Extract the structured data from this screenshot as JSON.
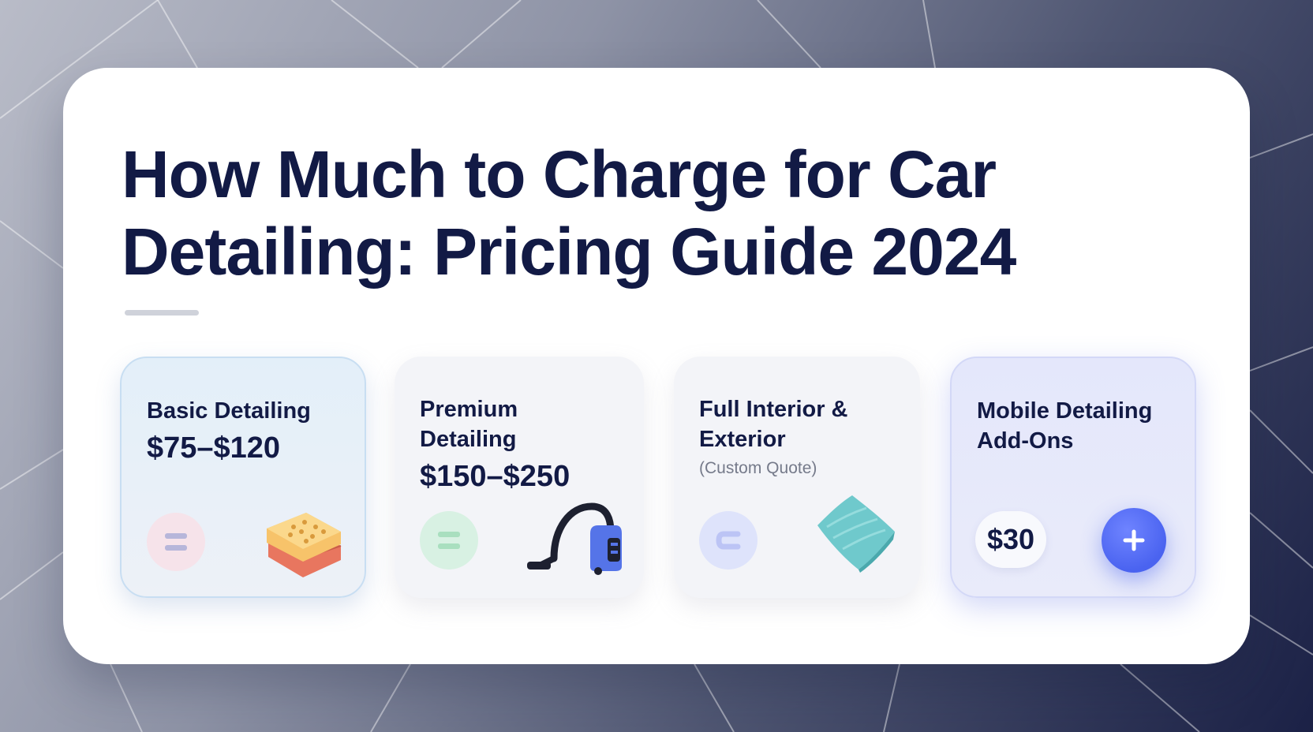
{
  "page": {
    "title": "How Much to Charge for Car Detailing: Pricing Guide 2024"
  },
  "cards": [
    {
      "label": "Basic Detailing",
      "price": "$75–$120",
      "badge_icon": "list-icon",
      "illustration": "sponge-icon"
    },
    {
      "label": "Premium Detailing",
      "price": "$150–$250",
      "badge_icon": "list-icon",
      "illustration": "vacuum-icon"
    },
    {
      "label": "Full Interior & Exterior",
      "note": "(Custom Quote)",
      "badge_icon": "c-shape-icon",
      "illustration": "microfiber-towel-icon"
    },
    {
      "label": "Mobile Detailing Add-Ons",
      "price": "$30",
      "action_icon": "plus-icon"
    }
  ],
  "colors": {
    "heading": "#121a45",
    "accent": "#4a63f0",
    "panel": "#ffffff"
  }
}
